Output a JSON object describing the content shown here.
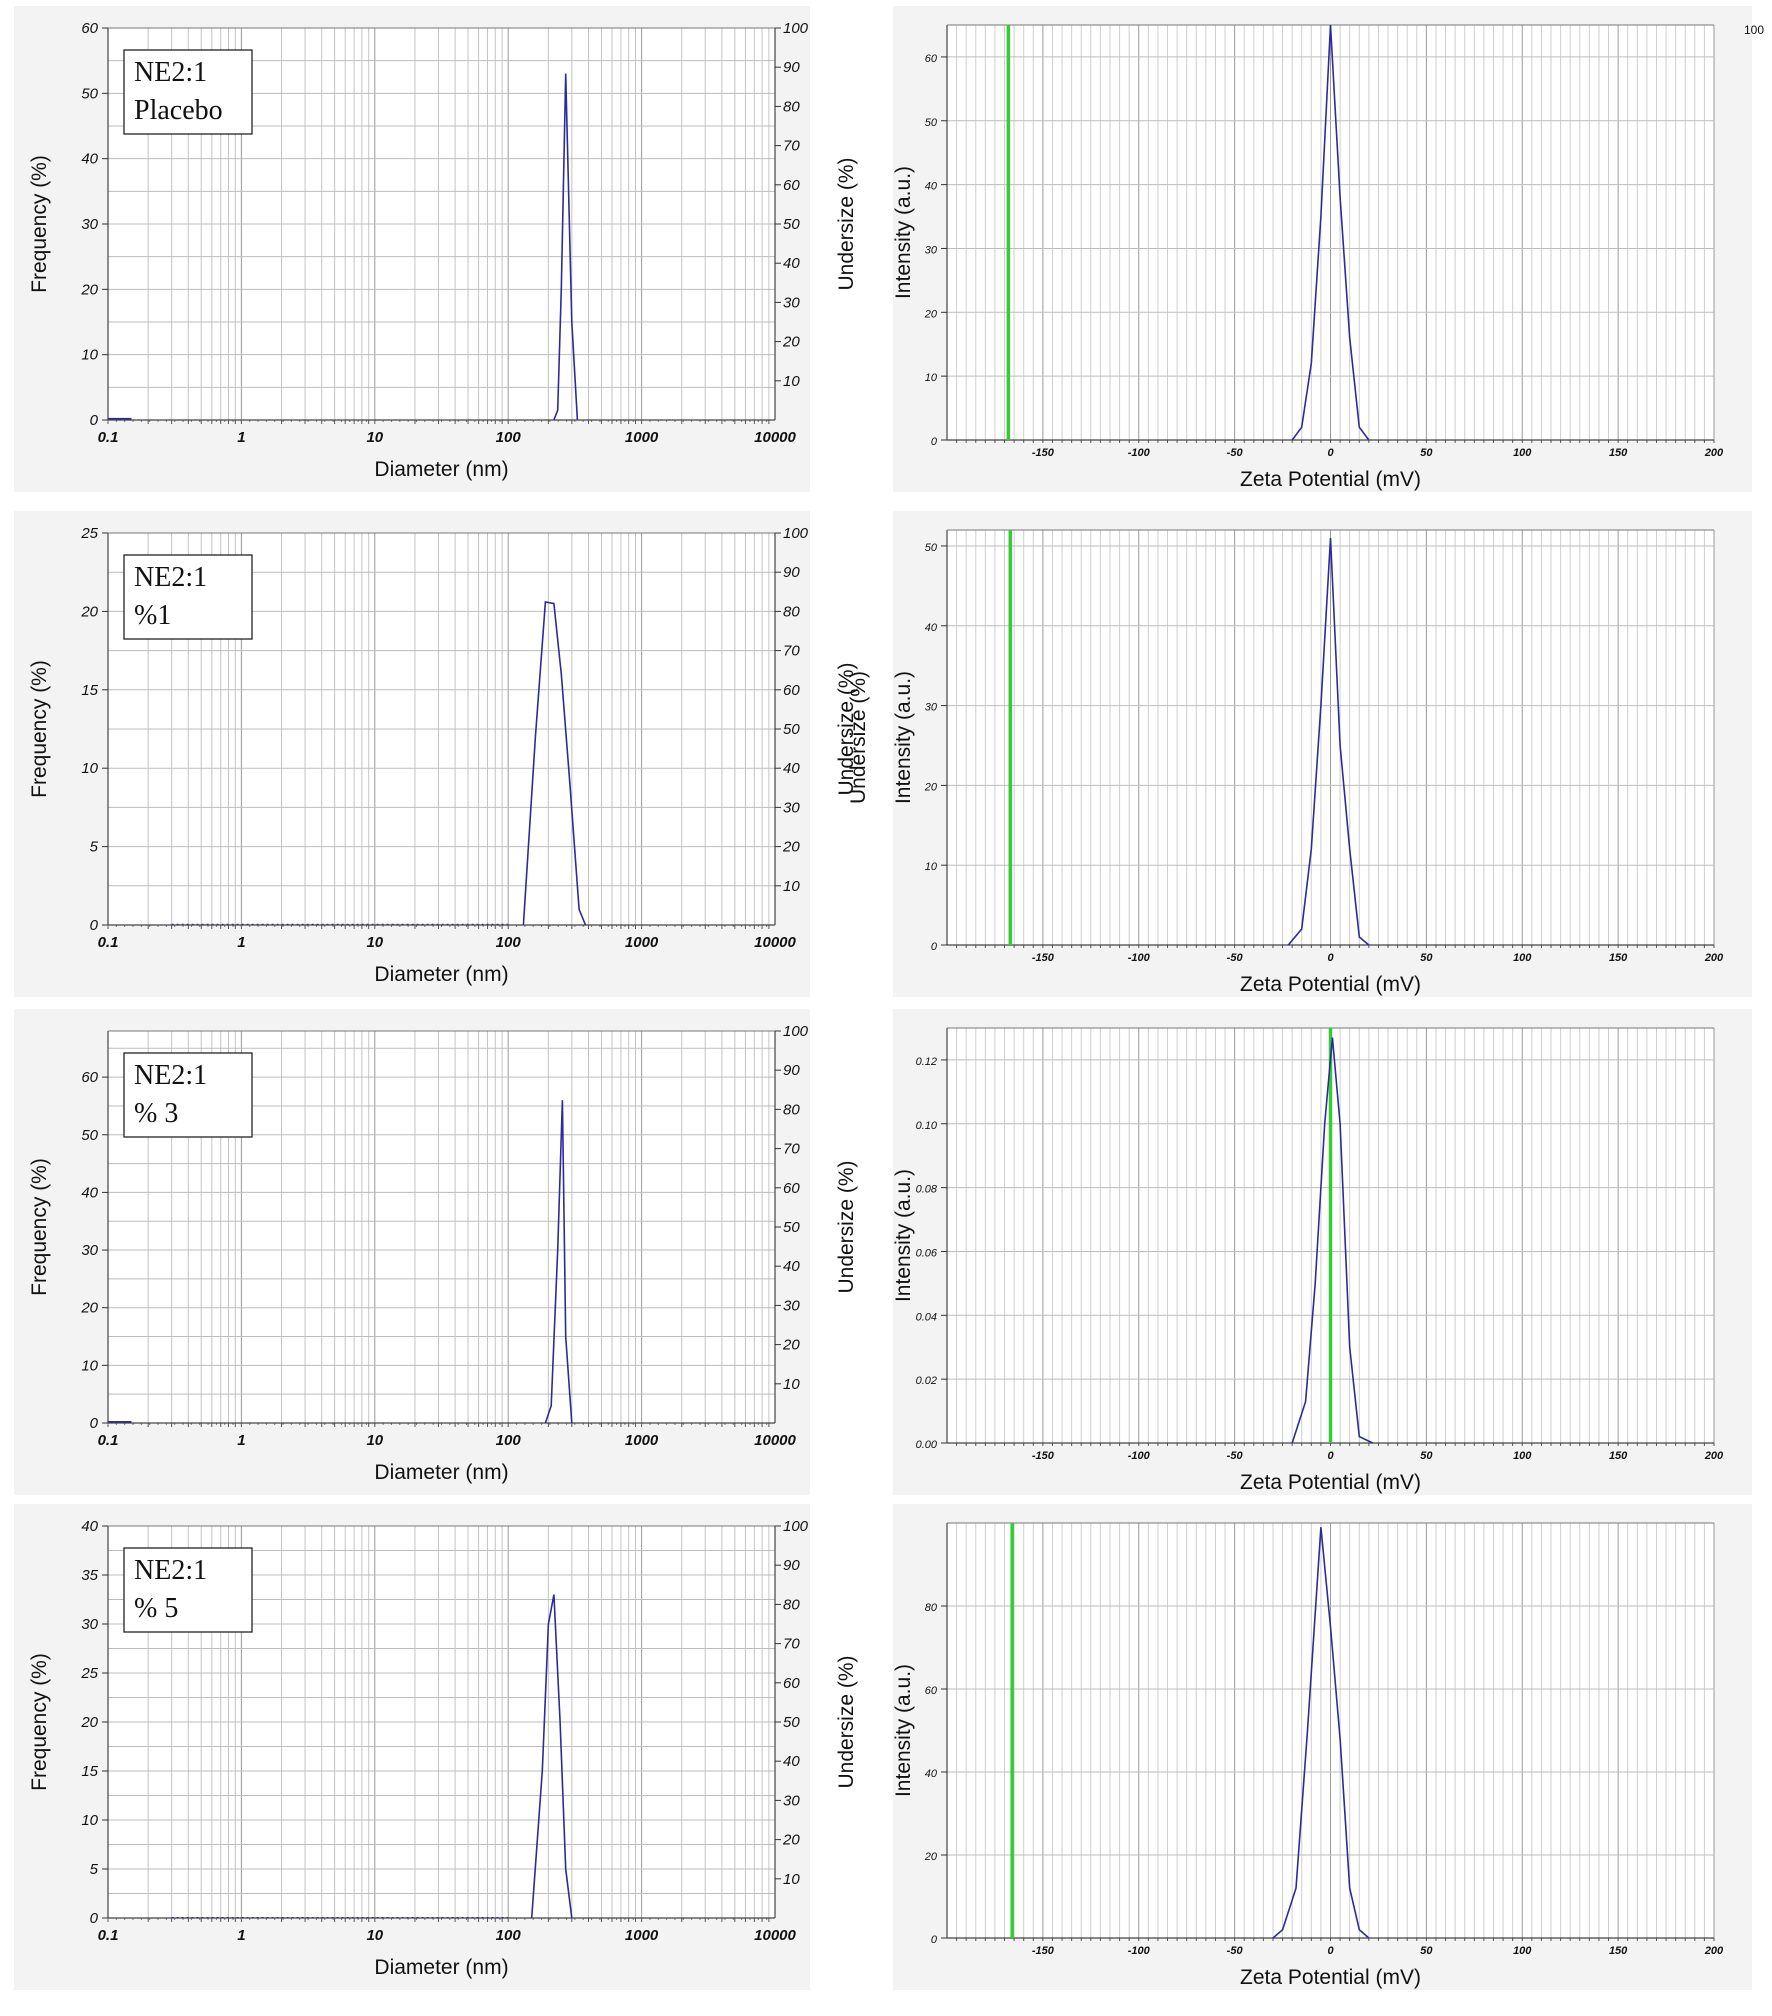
{
  "chart_data": [
    {
      "type": "line",
      "kind": "size",
      "xscale": "log",
      "xlim": [
        0.1,
        10000
      ],
      "ylim": [
        0,
        60
      ],
      "yticks": [
        0,
        10,
        20,
        30,
        40,
        50,
        60
      ],
      "y2lim": [
        0,
        100
      ],
      "y2ticks": [
        10,
        20,
        30,
        40,
        50,
        60,
        70,
        80,
        90,
        100
      ],
      "xticks": [
        "0.1",
        "1",
        "10",
        "100",
        "1000",
        "10000"
      ],
      "xlabel": "Diameter (nm)",
      "ylabel": "Frequency (%)",
      "y2label": "Undersize (%)",
      "legend_lines": [
        "NE2:1",
        "Placebo"
      ],
      "series": [
        {
          "color": "#2b2b9a",
          "x": [
            0.1,
            0.15
          ],
          "y": [
            0.2,
            0.2
          ]
        },
        {
          "color": "#2b2b9a",
          "x": [
            220,
            235,
            250,
            270,
            300,
            330
          ],
          "y": [
            0,
            1.5,
            20,
            53,
            15,
            0
          ]
        }
      ]
    },
    {
      "type": "line",
      "kind": "zeta",
      "xlim": [
        -200,
        200
      ],
      "ylim": [
        0,
        65
      ],
      "yticks": [
        0,
        10,
        20,
        30,
        40,
        50,
        60
      ],
      "xticks": [
        -150,
        -100,
        -50,
        0,
        50,
        100,
        150,
        200
      ],
      "xlabel": "Zeta Potential (mV)",
      "ylabel": "Intensity (a.u.)",
      "marker_x": -168,
      "marker_color": "#33cc33",
      "series": [
        {
          "color": "#2b2b9a",
          "x": [
            -20,
            -15,
            -10,
            -5,
            0,
            5,
            10,
            15,
            20
          ],
          "y": [
            0,
            2,
            12,
            35,
            65,
            38,
            16,
            2,
            0
          ]
        }
      ]
    },
    {
      "type": "line",
      "kind": "size",
      "xscale": "log",
      "xlim": [
        0.1,
        10000
      ],
      "ylim": [
        0,
        25
      ],
      "yticks": [
        0,
        5,
        10,
        15,
        20,
        25
      ],
      "y2lim": [
        0,
        100
      ],
      "y2ticks": [
        10,
        20,
        30,
        40,
        50,
        60,
        70,
        80,
        90,
        100
      ],
      "xticks": [
        "0.1",
        "1",
        "10",
        "100",
        "1000",
        "10000"
      ],
      "xlabel": "Diameter (nm)",
      "ylabel": "Frequency (%)",
      "y2label": "Undersize (%)",
      "legend_lines": [
        "NE2:1",
        "%1"
      ],
      "series": [
        {
          "color": "#2b2b9a",
          "x": [
            0.3,
            100
          ],
          "y": [
            0.05,
            0.05
          ],
          "dotted": true
        },
        {
          "color": "#2b2b9a",
          "x": [
            130,
            160,
            190,
            220,
            250,
            290,
            340,
            380
          ],
          "y": [
            0,
            12,
            20.6,
            20.5,
            16,
            9,
            1,
            0
          ]
        }
      ]
    },
    {
      "type": "line",
      "kind": "zeta",
      "xlim": [
        -200,
        200
      ],
      "ylim": [
        0,
        52
      ],
      "yticks": [
        0,
        10,
        20,
        30,
        40,
        50
      ],
      "xticks": [
        -150,
        -100,
        -50,
        0,
        50,
        100,
        150,
        200
      ],
      "xlabel": "Zeta Potential (mV)",
      "ylabel": "Intensity (a.u.)",
      "y2label": "Undersize (%)",
      "marker_x": -167,
      "marker_color": "#33cc33",
      "series": [
        {
          "color": "#2b2b9a",
          "x": [
            -22,
            -15,
            -10,
            -5,
            0,
            5,
            10,
            15,
            20
          ],
          "y": [
            0,
            2,
            12,
            30,
            51,
            25,
            12,
            1,
            0
          ]
        }
      ]
    },
    {
      "type": "line",
      "kind": "size",
      "xscale": "log",
      "xlim": [
        0.1,
        10000
      ],
      "ylim": [
        0,
        68
      ],
      "yticks": [
        0,
        10,
        20,
        30,
        40,
        50,
        60
      ],
      "y2lim": [
        0,
        100
      ],
      "y2ticks": [
        10,
        20,
        30,
        40,
        50,
        60,
        70,
        80,
        90,
        100
      ],
      "xticks": [
        "0.1",
        "1",
        "10",
        "100",
        "1000",
        "10000"
      ],
      "xlabel": "Diameter (nm)",
      "ylabel": "Frequency (%)",
      "y2label": "Undersize (%)",
      "legend_lines": [
        "NE2:1",
        "% 3"
      ],
      "series": [
        {
          "color": "#2b2b9a",
          "x": [
            0.1,
            0.15
          ],
          "y": [
            0.2,
            0.2
          ]
        },
        {
          "color": "#2b2b9a",
          "x": [
            190,
            210,
            235,
            255,
            270,
            300
          ],
          "y": [
            0,
            3,
            30,
            56,
            15,
            0
          ]
        }
      ]
    },
    {
      "type": "line",
      "kind": "zeta",
      "xlim": [
        -200,
        200
      ],
      "ylim": [
        0,
        0.13
      ],
      "yticks": [
        "0.00",
        "0.02",
        "0.04",
        "0.06",
        "0.08",
        "0.10",
        "0.12"
      ],
      "xticks": [
        -150,
        -100,
        -50,
        0,
        50,
        100,
        150,
        200
      ],
      "xlabel": "Zeta Potential (mV)",
      "ylabel": "Intensity (a.u.)",
      "marker_x": 0,
      "marker_color": "#33cc33",
      "series": [
        {
          "color": "#2b2b9a",
          "x": [
            -20,
            -13,
            -8,
            -3,
            1,
            5,
            10,
            15,
            22
          ],
          "y": [
            0,
            0.013,
            0.05,
            0.1,
            0.127,
            0.1,
            0.03,
            0.002,
            0
          ]
        }
      ]
    },
    {
      "type": "line",
      "kind": "size",
      "xscale": "log",
      "xlim": [
        0.1,
        10000
      ],
      "ylim": [
        0,
        40
      ],
      "yticks": [
        0,
        5,
        10,
        15,
        20,
        25,
        30,
        35,
        40
      ],
      "y2lim": [
        0,
        100
      ],
      "y2ticks": [
        10,
        20,
        30,
        40,
        50,
        60,
        70,
        80,
        90,
        100
      ],
      "xticks": [
        "0.1",
        "1",
        "10",
        "100",
        "1000",
        "10000"
      ],
      "xlabel": "Diameter (nm)",
      "ylabel": "Frequency (%)",
      "y2label": "Undersize (%)",
      "legend_lines": [
        "NE2:1",
        "% 5"
      ],
      "series": [
        {
          "color": "#2b2b9a",
          "x": [
            0.3,
            100
          ],
          "y": [
            0.05,
            0.05
          ],
          "dotted": true
        },
        {
          "color": "#2b2b9a",
          "x": [
            150,
            180,
            200,
            220,
            245,
            270,
            300
          ],
          "y": [
            0,
            15,
            30,
            33,
            20,
            5,
            0
          ]
        }
      ]
    },
    {
      "type": "line",
      "kind": "zeta",
      "xlim": [
        -200,
        200
      ],
      "ylim": [
        0,
        100
      ],
      "yticks": [
        0,
        20,
        40,
        60,
        80
      ],
      "xticks": [
        -150,
        -100,
        -50,
        0,
        50,
        100,
        150,
        200
      ],
      "xlabel": "Zeta Potential (mV)",
      "ylabel": "Intensity (a.u.)",
      "marker_x": -166,
      "marker_color": "#33cc33",
      "series": [
        {
          "color": "#2b2b9a",
          "x": [
            -30,
            -25,
            -18,
            -12,
            -5,
            0,
            5,
            10,
            15,
            20
          ],
          "y": [
            0,
            2,
            12,
            50,
            99,
            75,
            48,
            12,
            2,
            0
          ]
        }
      ]
    }
  ],
  "top_right_y2_tick": "100"
}
